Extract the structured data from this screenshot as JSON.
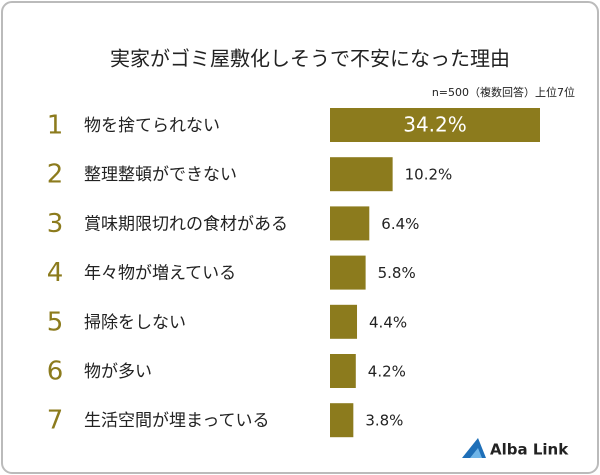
{
  "chart_data": {
    "type": "bar",
    "orientation": "horizontal",
    "title": "実家がゴミ屋敷化しそうで不安になった理由",
    "subtitle": "n=500（複数回答）上位7位",
    "ranks": [
      1,
      2,
      3,
      4,
      5,
      6,
      7
    ],
    "categories": [
      "物を捨てられない",
      "整理整頓ができない",
      "賞味期限切れの食材がある",
      "年々物が増えている",
      "掃除をしない",
      "物が多い",
      "生活空間が埋まっている"
    ],
    "values": [
      34.2,
      10.2,
      6.4,
      5.8,
      4.4,
      4.2,
      3.8
    ],
    "value_labels": [
      "34.2%",
      "10.2%",
      "6.4%",
      "5.8%",
      "4.4%",
      "4.2%",
      "3.8%"
    ],
    "color": "#8c7b1d",
    "logo": "Alba Link"
  }
}
